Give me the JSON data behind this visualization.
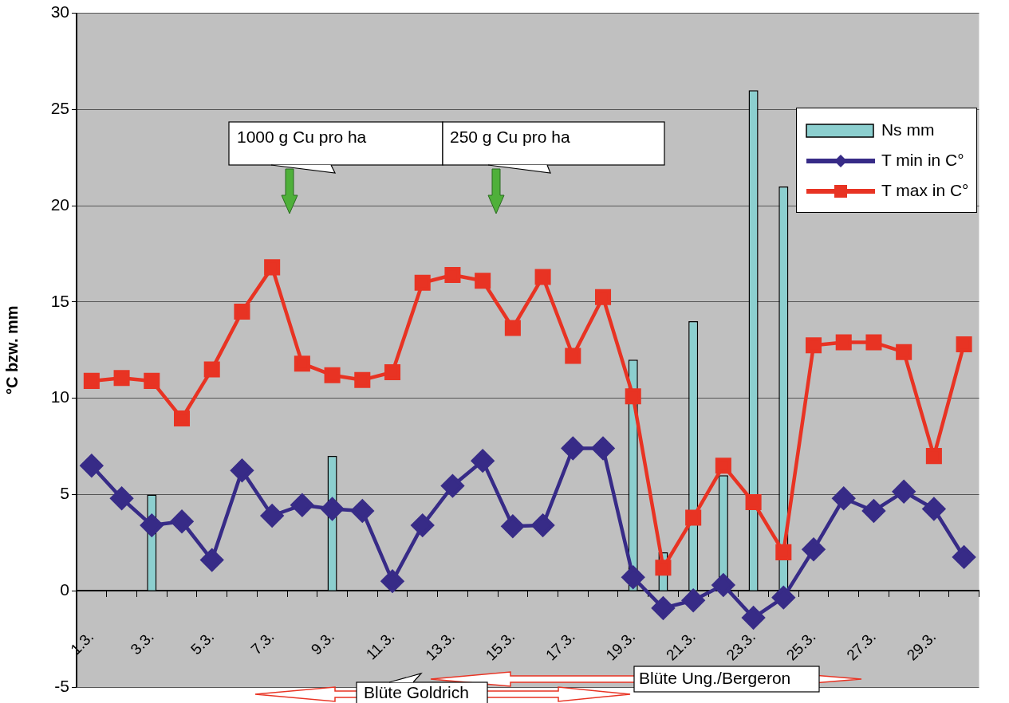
{
  "chart_data": {
    "type": "bar",
    "ylabel": "°C bzw. mm",
    "categories": [
      "1.3.",
      null,
      "3.3.",
      null,
      "5.3.",
      null,
      "7.3.",
      null,
      "9.3.",
      null,
      "11.3.",
      null,
      "13.3.",
      null,
      "15.3.",
      null,
      "17.3.",
      null,
      "19.3.",
      null,
      "21.3.",
      null,
      "23.3.",
      null,
      "25.3.",
      null,
      "27.3.",
      null,
      "29.3.",
      null
    ],
    "series": [
      {
        "name": "Ns mm",
        "color": "#8ccfcf",
        "values": [
          null,
          null,
          5,
          null,
          null,
          null,
          null,
          null,
          7,
          null,
          null,
          null,
          null,
          null,
          null,
          null,
          null,
          null,
          12,
          2,
          14,
          6,
          26,
          21,
          null,
          null,
          null,
          null,
          null,
          null
        ]
      },
      {
        "name": "T min in C°",
        "type": "line",
        "color": "#372b87",
        "marker": "diamond",
        "values": [
          6.5,
          4.8,
          3.4,
          3.6,
          1.6,
          6.25,
          3.9,
          4.45,
          4.25,
          4.15,
          0.5,
          3.4,
          5.45,
          6.75,
          3.35,
          3.4,
          7.4,
          7.4,
          0.7,
          -0.9,
          -0.5,
          0.3,
          -1.4,
          -0.35,
          2.15,
          4.8,
          4.15,
          5.15,
          4.25,
          1.75
        ]
      },
      {
        "name": "T max in C°",
        "type": "line",
        "color": "#e83323",
        "marker": "square",
        "values": [
          10.9,
          11.05,
          10.9,
          8.95,
          11.5,
          14.5,
          16.8,
          11.8,
          11.2,
          10.95,
          11.35,
          16.0,
          16.4,
          16.1,
          13.65,
          16.3,
          12.2,
          15.25,
          10.1,
          1.2,
          3.8,
          6.5,
          4.6,
          2.0,
          12.75,
          12.9,
          12.9,
          12.4,
          7.0,
          12.8
        ]
      }
    ],
    "ylim": [
      -5,
      30
    ],
    "yticks": [
      -5,
      0,
      5,
      10,
      15,
      20,
      25,
      30
    ],
    "grid": "y",
    "legend": "top right",
    "annotations": [
      "1000 g Cu pro ha",
      "250 g Cu pro ha",
      "Blüte Goldrich",
      "Blüte Ung./Bergeron"
    ]
  }
}
